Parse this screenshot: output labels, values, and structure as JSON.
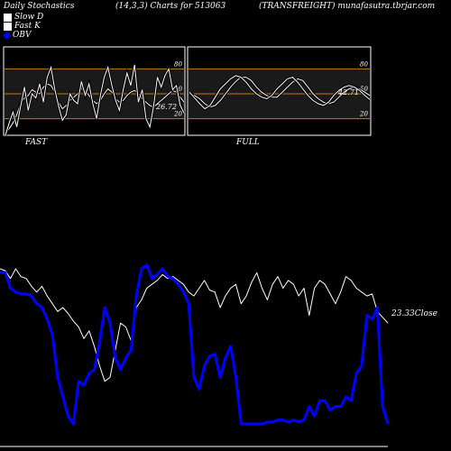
{
  "header": {
    "left": "Daily Stochastics",
    "middle": "(14,3,3) Charts for 513063",
    "right": "(TRANSFREIGHT) munafasutra.tbrjar.com"
  },
  "legend": [
    {
      "label": "Slow D",
      "color": "#ffffff"
    },
    {
      "label": "Fast K",
      "color": "#ffffff"
    },
    {
      "label": "OBV",
      "color": "#0000ff"
    }
  ],
  "chart_data": [
    {
      "type": "line",
      "panel": "FAST",
      "title": "FAST",
      "ylim": [
        0,
        100
      ],
      "guide_lines": [
        80,
        50,
        20
      ],
      "tick_labels": [
        "80",
        "50",
        "20"
      ],
      "last_value_label": "26.72",
      "series": [
        {
          "name": "Slow D",
          "values": [
            2,
            8,
            15,
            25,
            38,
            45,
            48,
            55,
            52,
            50,
            58,
            62,
            60,
            52,
            40,
            32,
            36,
            42,
            46,
            50,
            56,
            54,
            48,
            42,
            38,
            42,
            50,
            56,
            52,
            44,
            40,
            42,
            48,
            52,
            54,
            50,
            44,
            40,
            36,
            34,
            38,
            42,
            46,
            50,
            54,
            52,
            46,
            40
          ]
        },
        {
          "name": "Fast K",
          "values": [
            0,
            15,
            28,
            10,
            35,
            58,
            30,
            50,
            45,
            62,
            40,
            70,
            82,
            55,
            35,
            18,
            25,
            50,
            42,
            38,
            65,
            48,
            62,
            38,
            20,
            48,
            70,
            82,
            60,
            42,
            30,
            55,
            75,
            60,
            85,
            40,
            55,
            20,
            10,
            35,
            70,
            58,
            72,
            80,
            55,
            60,
            36,
            27
          ]
        }
      ]
    },
    {
      "type": "line",
      "panel": "FULL",
      "title": "FULL",
      "ylim": [
        0,
        100
      ],
      "guide_lines": [
        80,
        50,
        20
      ],
      "tick_labels": [
        "80",
        "50",
        "20"
      ],
      "last_value_label": "42.71",
      "series": [
        {
          "name": "Slow D",
          "values": [
            50,
            48,
            44,
            38,
            34,
            36,
            42,
            50,
            58,
            65,
            70,
            70,
            66,
            58,
            52,
            48,
            46,
            46,
            52,
            58,
            64,
            68,
            66,
            58,
            50,
            44,
            40,
            38,
            40,
            46,
            52,
            56,
            58,
            56,
            52,
            48
          ]
        },
        {
          "name": "Fast K",
          "values": [
            52,
            45,
            38,
            32,
            36,
            46,
            56,
            62,
            68,
            72,
            70,
            64,
            56,
            50,
            46,
            44,
            48,
            56,
            62,
            68,
            70,
            64,
            56,
            48,
            42,
            38,
            36,
            40,
            48,
            54,
            58,
            60,
            58,
            54,
            48,
            43
          ]
        }
      ]
    },
    {
      "type": "line",
      "panel": "price-obv",
      "right_label": "23.33Close",
      "series": [
        {
          "name": "Close",
          "color": "#ffffff",
          "values": [
            80,
            79,
            75,
            80,
            76,
            75,
            71,
            68,
            71,
            66,
            62,
            58,
            60,
            57,
            53,
            50,
            44,
            48,
            40,
            30,
            22,
            24,
            38,
            52,
            50,
            43,
            60,
            64,
            70,
            72,
            74,
            77,
            75,
            76,
            74,
            72,
            68,
            66,
            70,
            74,
            69,
            68,
            60,
            66,
            70,
            72,
            62,
            66,
            73,
            78,
            70,
            64,
            72,
            76,
            70,
            74,
            72,
            66,
            70,
            56,
            70,
            74,
            72,
            67,
            62,
            68,
            76,
            74,
            70,
            68,
            66,
            67,
            58,
            55,
            52
          ]
        },
        {
          "name": "OBV",
          "color": "#0000ff",
          "values": [
            78,
            78,
            70,
            68,
            67,
            67,
            66,
            62,
            60,
            54,
            46,
            24,
            14,
            4,
            0,
            22,
            20,
            26,
            28,
            42,
            60,
            52,
            34,
            28,
            34,
            38,
            66,
            80,
            82,
            75,
            77,
            80,
            76,
            75,
            72,
            68,
            62,
            24,
            18,
            30,
            35,
            36,
            24,
            34,
            40,
            24,
            0,
            0,
            0,
            0,
            0,
            1,
            1,
            2,
            2,
            1,
            2,
            1,
            2,
            9,
            4,
            12,
            12,
            7,
            9,
            9,
            14,
            12,
            26,
            30,
            56,
            54,
            60,
            9,
            0
          ]
        }
      ]
    }
  ]
}
